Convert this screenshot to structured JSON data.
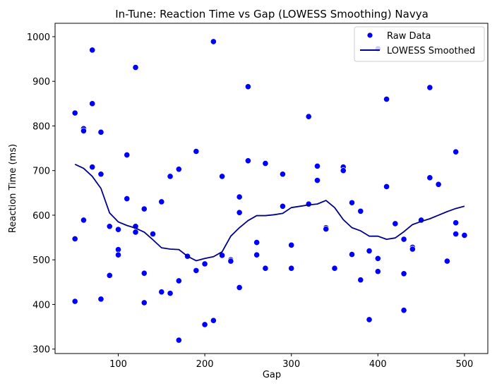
{
  "chart_data": {
    "type": "scatter",
    "title": "In-Tune: Reaction Time vs Gap (LOWESS Smoothing) Navya",
    "xlabel": "Gap",
    "ylabel": "Reaction Time (ms)",
    "xlim": [
      27,
      527
    ],
    "ylim": [
      290,
      1030
    ],
    "xticks": [
      100,
      200,
      300,
      400,
      500
    ],
    "yticks": [
      300,
      400,
      500,
      600,
      700,
      800,
      900,
      1000
    ],
    "legend_position": "top-right",
    "grid": false,
    "colors": {
      "raw": "#0000ff",
      "smoothed": "#00008b",
      "marker_edge": "#ffffff"
    },
    "series": [
      {
        "name": "Raw Data",
        "kind": "scatter",
        "points": [
          [
            50,
            829
          ],
          [
            50,
            547
          ],
          [
            50,
            407
          ],
          [
            60,
            794
          ],
          [
            60,
            789
          ],
          [
            60,
            589
          ],
          [
            70,
            970
          ],
          [
            70,
            850
          ],
          [
            70,
            708
          ],
          [
            80,
            786
          ],
          [
            80,
            692
          ],
          [
            80,
            412
          ],
          [
            90,
            575
          ],
          [
            90,
            465
          ],
          [
            100,
            568
          ],
          [
            100,
            523
          ],
          [
            100,
            511
          ],
          [
            110,
            735
          ],
          [
            110,
            637
          ],
          [
            120,
            931
          ],
          [
            120,
            575
          ],
          [
            120,
            562
          ],
          [
            130,
            614
          ],
          [
            130,
            470
          ],
          [
            130,
            404
          ],
          [
            140,
            558
          ],
          [
            150,
            630
          ],
          [
            150,
            428
          ],
          [
            160,
            687
          ],
          [
            160,
            425
          ],
          [
            170,
            703
          ],
          [
            170,
            453
          ],
          [
            170,
            320
          ],
          [
            180,
            508
          ],
          [
            190,
            743
          ],
          [
            190,
            476
          ],
          [
            200,
            491
          ],
          [
            200,
            355
          ],
          [
            210,
            989
          ],
          [
            210,
            364
          ],
          [
            220,
            687
          ],
          [
            220,
            510
          ],
          [
            230,
            500
          ],
          [
            230,
            497
          ],
          [
            240,
            641
          ],
          [
            240,
            606
          ],
          [
            240,
            438
          ],
          [
            250,
            888
          ],
          [
            250,
            722
          ],
          [
            260,
            539
          ],
          [
            260,
            511
          ],
          [
            270,
            716
          ],
          [
            270,
            481
          ],
          [
            290,
            692
          ],
          [
            290,
            620
          ],
          [
            300,
            533
          ],
          [
            300,
            481
          ],
          [
            320,
            821
          ],
          [
            320,
            625
          ],
          [
            330,
            710
          ],
          [
            330,
            678
          ],
          [
            340,
            572
          ],
          [
            340,
            569
          ],
          [
            350,
            481
          ],
          [
            360,
            708
          ],
          [
            360,
            700
          ],
          [
            370,
            628
          ],
          [
            370,
            512
          ],
          [
            380,
            609
          ],
          [
            380,
            455
          ],
          [
            390,
            520
          ],
          [
            390,
            366
          ],
          [
            400,
            973
          ],
          [
            400,
            503
          ],
          [
            400,
            474
          ],
          [
            410,
            860
          ],
          [
            410,
            664
          ],
          [
            420,
            581
          ],
          [
            430,
            546
          ],
          [
            430,
            469
          ],
          [
            430,
            387
          ],
          [
            440,
            528
          ],
          [
            440,
            524
          ],
          [
            450,
            589
          ],
          [
            460,
            886
          ],
          [
            460,
            684
          ],
          [
            470,
            669
          ],
          [
            480,
            497
          ],
          [
            490,
            742
          ],
          [
            490,
            583
          ],
          [
            490,
            558
          ],
          [
            500,
            555
          ]
        ]
      },
      {
        "name": "LOWESS Smoothed",
        "kind": "line",
        "x": [
          50,
          60,
          70,
          80,
          90,
          100,
          110,
          120,
          130,
          140,
          150,
          160,
          170,
          180,
          190,
          200,
          210,
          220,
          230,
          240,
          250,
          260,
          270,
          280,
          290,
          300,
          310,
          320,
          330,
          340,
          350,
          360,
          370,
          380,
          390,
          400,
          410,
          420,
          430,
          440,
          450,
          460,
          470,
          480,
          490,
          500
        ],
        "y": [
          714,
          705,
          687,
          660,
          605,
          585,
          577,
          571,
          562,
          545,
          527,
          524,
          523,
          508,
          498,
          503,
          507,
          518,
          553,
          572,
          588,
          599,
          599,
          601,
          604,
          617,
          620,
          623,
          625,
          633,
          617,
          590,
          572,
          565,
          553,
          553,
          546,
          549,
          563,
          579,
          586,
          592,
          600,
          608,
          615,
          620
        ]
      }
    ]
  }
}
